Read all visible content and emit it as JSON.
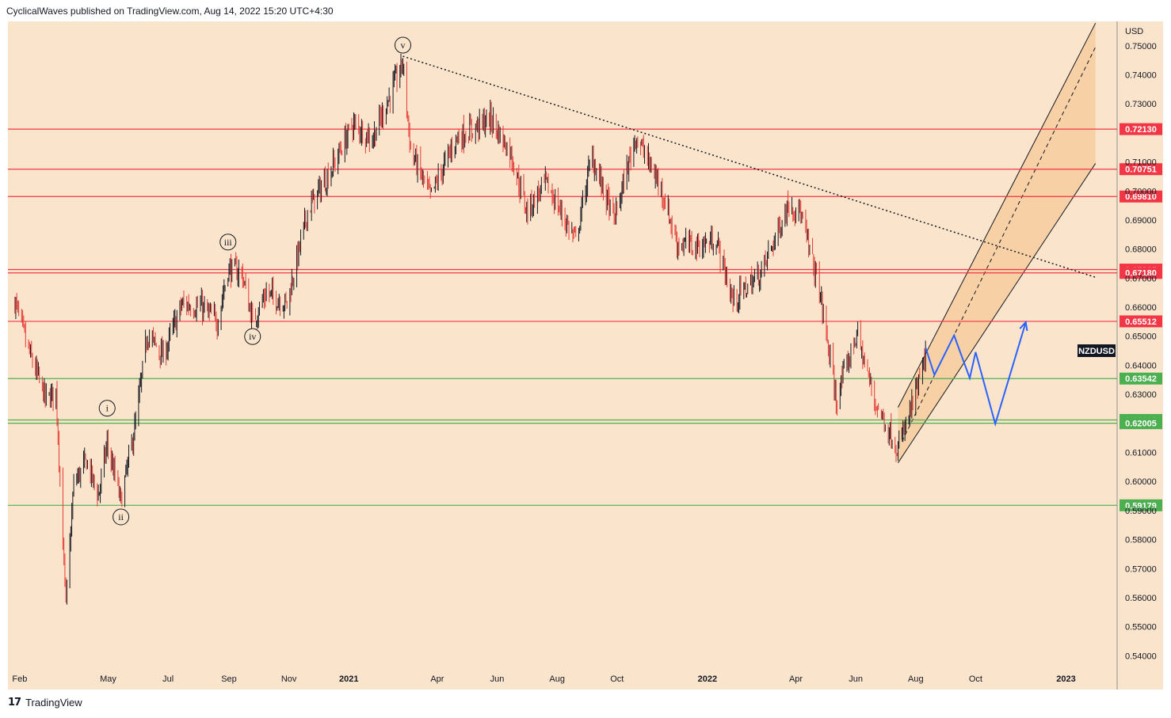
{
  "header": "CyclicalWaves published on TradingView.com, Aug 14, 2022 15:20 UTC+4:30",
  "footer": {
    "logo": "17",
    "brand": "TradingView"
  },
  "chart_data": {
    "type": "candlestick",
    "symbol": "NZDUSD",
    "currency": "USD",
    "y_ticks": [
      "0.75000",
      "0.74000",
      "0.73000",
      "0.71000",
      "0.70000",
      "0.69000",
      "0.68000",
      "0.67000",
      "0.66000",
      "0.65000",
      "0.64000",
      "0.63000",
      "0.61000",
      "0.60000",
      "0.59000",
      "0.58000",
      "0.57000",
      "0.56000",
      "0.55000",
      "0.54000"
    ],
    "ylim": [
      0.536,
      0.7584
    ],
    "x_ticks": [
      {
        "label": "Feb",
        "date": "2020-02-01",
        "bold": false
      },
      {
        "label": "May",
        "date": "2020-05-01",
        "bold": false
      },
      {
        "label": "Jul",
        "date": "2020-07-01",
        "bold": false
      },
      {
        "label": "Sep",
        "date": "2020-09-01",
        "bold": false
      },
      {
        "label": "Nov",
        "date": "2020-11-01",
        "bold": false
      },
      {
        "label": "2021",
        "date": "2021-01-01",
        "bold": true
      },
      {
        "label": "Apr",
        "date": "2021-04-01",
        "bold": false
      },
      {
        "label": "Jun",
        "date": "2021-06-01",
        "bold": false
      },
      {
        "label": "Aug",
        "date": "2021-08-01",
        "bold": false
      },
      {
        "label": "Oct",
        "date": "2021-10-01",
        "bold": false
      },
      {
        "label": "2022",
        "date": "2022-01-01",
        "bold": true
      },
      {
        "label": "Apr",
        "date": "2022-04-01",
        "bold": false
      },
      {
        "label": "Jun",
        "date": "2022-06-01",
        "bold": false
      },
      {
        "label": "Aug",
        "date": "2022-08-01",
        "bold": false
      },
      {
        "label": "Oct",
        "date": "2022-10-01",
        "bold": false
      },
      {
        "label": "2023",
        "date": "2023-01-01",
        "bold": true
      }
    ],
    "levels": [
      {
        "label": "0.72130",
        "value": 0.7213,
        "color": "#f23645"
      },
      {
        "label": "0.70751",
        "value": 0.70751,
        "color": "#f23645"
      },
      {
        "label": "0.69810",
        "value": 0.6981,
        "color": "#f23645"
      },
      {
        "label": "0.67295",
        "value": 0.67295,
        "color": "#f23645"
      },
      {
        "label": "0.67180",
        "value": 0.6718,
        "color": "#f23645"
      },
      {
        "label": "0.65512",
        "value": 0.65512,
        "color": "#f23645"
      },
      {
        "label": "0.63542",
        "value": 0.63542,
        "color": "#4caf50"
      },
      {
        "label": "0.62118",
        "value": 0.62118,
        "color": "#4caf50"
      },
      {
        "label": "0.62005",
        "value": 0.62005,
        "color": "#4caf50"
      },
      {
        "label": "0.59179",
        "value": 0.59179,
        "color": "#4caf50"
      }
    ],
    "price_path": [
      [
        "2020-01-27",
        0.662
      ],
      [
        "2020-02-10",
        0.645
      ],
      [
        "2020-02-28",
        0.628
      ],
      [
        "2020-03-09",
        0.631
      ],
      [
        "2020-03-19",
        0.557
      ],
      [
        "2020-03-27",
        0.599
      ],
      [
        "2020-04-09",
        0.607
      ],
      [
        "2020-04-21",
        0.595
      ],
      [
        "2020-04-30",
        0.613
      ],
      [
        "2020-05-14",
        0.593
      ],
      [
        "2020-05-29",
        0.62
      ],
      [
        "2020-06-10",
        0.651
      ],
      [
        "2020-06-26",
        0.643
      ],
      [
        "2020-07-15",
        0.661
      ],
      [
        "2020-08-04",
        0.66
      ],
      [
        "2020-08-20",
        0.655
      ],
      [
        "2020-08-31",
        0.673
      ],
      [
        "2020-09-14",
        0.672
      ],
      [
        "2020-09-25",
        0.655
      ],
      [
        "2020-10-09",
        0.665
      ],
      [
        "2020-10-30",
        0.661
      ],
      [
        "2020-11-20",
        0.693
      ],
      [
        "2020-12-15",
        0.708
      ],
      [
        "2021-01-05",
        0.723
      ],
      [
        "2021-01-25",
        0.718
      ],
      [
        "2021-02-25",
        0.744
      ],
      [
        "2021-03-05",
        0.714
      ],
      [
        "2021-03-25",
        0.698
      ],
      [
        "2021-04-20",
        0.718
      ],
      [
        "2021-05-25",
        0.725
      ],
      [
        "2021-06-15",
        0.713
      ],
      [
        "2021-07-01",
        0.693
      ],
      [
        "2021-07-20",
        0.703
      ],
      [
        "2021-08-20",
        0.683
      ],
      [
        "2021-09-05",
        0.712
      ],
      [
        "2021-09-28",
        0.69
      ],
      [
        "2021-10-20",
        0.719
      ],
      [
        "2021-11-15",
        0.701
      ],
      [
        "2021-12-01",
        0.682
      ],
      [
        "2021-12-20",
        0.681
      ],
      [
        "2022-01-10",
        0.683
      ],
      [
        "2022-01-27",
        0.662
      ],
      [
        "2022-02-25",
        0.672
      ],
      [
        "2022-03-25",
        0.696
      ],
      [
        "2022-04-05",
        0.693
      ],
      [
        "2022-04-25",
        0.666
      ],
      [
        "2022-05-12",
        0.628
      ],
      [
        "2022-06-02",
        0.651
      ],
      [
        "2022-06-20",
        0.628
      ],
      [
        "2022-07-14",
        0.611
      ],
      [
        "2022-08-01",
        0.63
      ],
      [
        "2022-08-11",
        0.642
      ]
    ],
    "wave_labels": [
      {
        "label": "i",
        "date": "2020-04-30",
        "price": 0.6214,
        "pos": "above"
      },
      {
        "label": "ii",
        "date": "2020-05-14",
        "price": 0.5916,
        "pos": "below"
      },
      {
        "label": "iii",
        "date": "2020-08-31",
        "price": 0.6786,
        "pos": "above"
      },
      {
        "label": "iv",
        "date": "2020-09-25",
        "price": 0.6537,
        "pos": "below"
      },
      {
        "label": "v",
        "date": "2021-02-25",
        "price": 0.7464,
        "pos": "above"
      }
    ],
    "trendline": {
      "from": [
        "2021-02-25",
        0.7464
      ],
      "to": [
        "2023-01-31",
        0.6703
      ],
      "style": "dotted"
    },
    "channel": {
      "lower_start": [
        "2022-07-14",
        0.6064
      ],
      "lower_end": [
        "2023-01-31",
        0.7095
      ],
      "upper_start": [
        "2022-07-14",
        0.6255
      ],
      "upper_end": [
        "2023-01-31",
        0.7578
      ],
      "mid_end": [
        "2023-01-31",
        0.7496
      ]
    },
    "projection": [
      [
        "2022-08-11",
        0.6461
      ],
      [
        "2022-08-20",
        0.6367
      ],
      [
        "2022-09-09",
        0.6503
      ],
      [
        "2022-09-25",
        0.6356
      ],
      [
        "2022-10-01",
        0.6445
      ],
      [
        "2022-10-21",
        0.6198
      ],
      [
        "2022-11-21",
        0.6548
      ]
    ]
  }
}
